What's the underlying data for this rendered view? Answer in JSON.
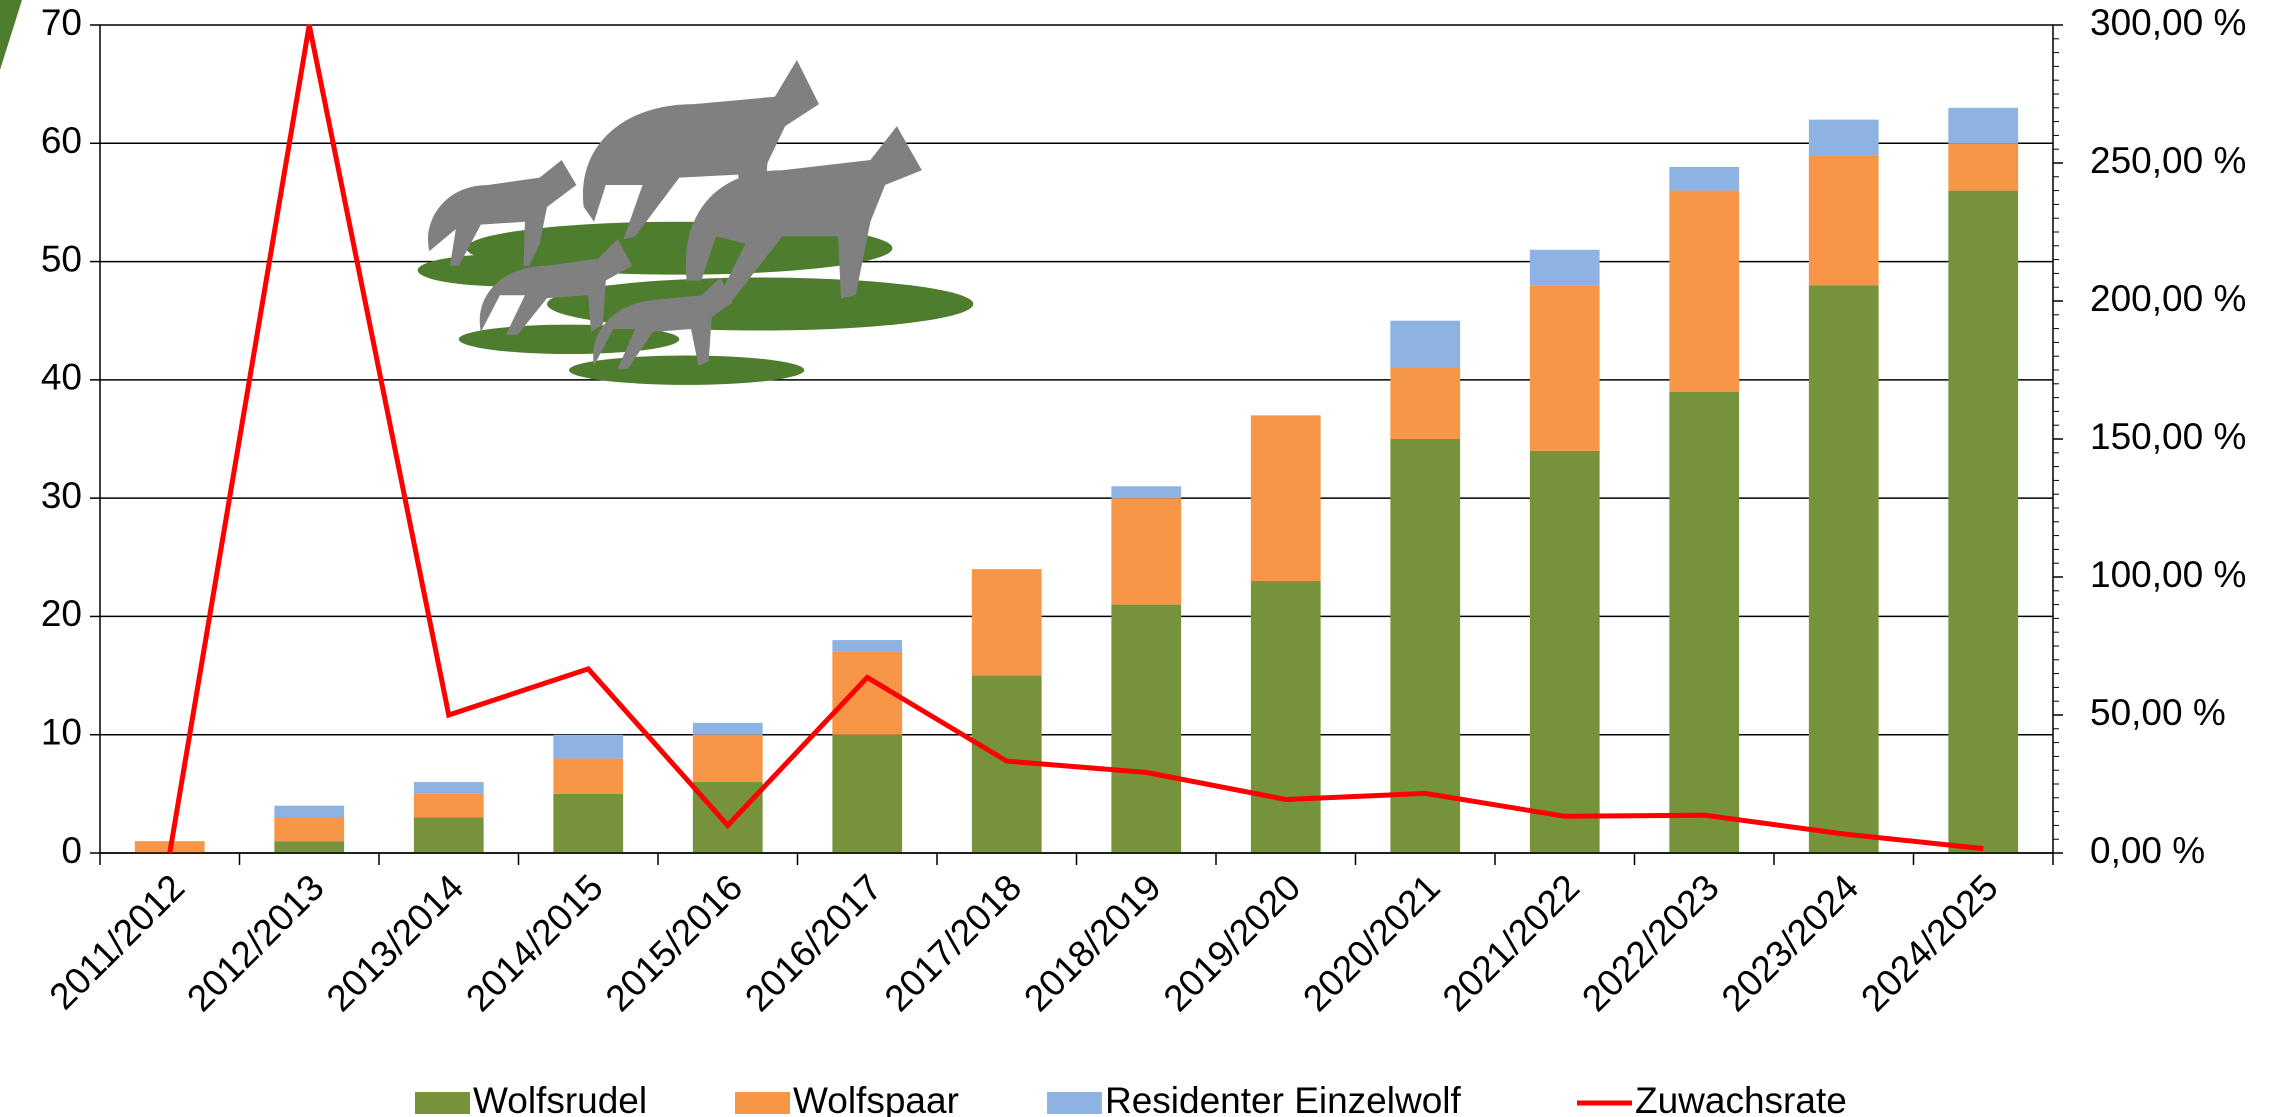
{
  "chart_data": {
    "type": "bar",
    "categories": [
      "2011/2012",
      "2012/2013",
      "2013/2014",
      "2014/2015",
      "2015/2016",
      "2016/2017",
      "2017/2018",
      "2018/2019",
      "2019/2020",
      "2020/2021",
      "2021/2022",
      "2022/2023",
      "2023/2024",
      "2024/2025"
    ],
    "series": [
      {
        "name": "Wolfsrudel",
        "color": "#76933c",
        "values": [
          0,
          1,
          3,
          5,
          6,
          10,
          15,
          21,
          23,
          35,
          34,
          39,
          48,
          56
        ]
      },
      {
        "name": "Wolfspaar",
        "color": "#f79646",
        "values": [
          1,
          2,
          2,
          3,
          4,
          7,
          9,
          9,
          14,
          6,
          14,
          17,
          11,
          4
        ]
      },
      {
        "name": "Residenter Einzelwolf",
        "color": "#8db3e2",
        "values": [
          0,
          1,
          1,
          2,
          1,
          1,
          0,
          1,
          0,
          4,
          3,
          2,
          3,
          3
        ]
      },
      {
        "name": "Zuwachsrate",
        "color": "#ff0000",
        "type": "line",
        "axis": "y2",
        "values": [
          0,
          300,
          50,
          66.7,
          10,
          63.6,
          33.3,
          29.2,
          19.4,
          21.6,
          13.3,
          13.7,
          6.9,
          1.6
        ]
      }
    ],
    "stacked": true,
    "ylim": [
      0,
      70
    ],
    "yticks": [
      0,
      10,
      20,
      30,
      40,
      50,
      60,
      70
    ],
    "y2lim": [
      0,
      300
    ],
    "y2ticks": [
      {
        "value": 0,
        "label": "0,00 %"
      },
      {
        "value": 50,
        "label": "50,00 %"
      },
      {
        "value": 100,
        "label": "100,00 %"
      },
      {
        "value": 150,
        "label": "150,00 %"
      },
      {
        "value": 200,
        "label": "200,00 %"
      },
      {
        "value": 250,
        "label": "250,00 %"
      },
      {
        "value": 300,
        "label": "300,00 %"
      }
    ],
    "grid": true,
    "legend": "bottom"
  }
}
